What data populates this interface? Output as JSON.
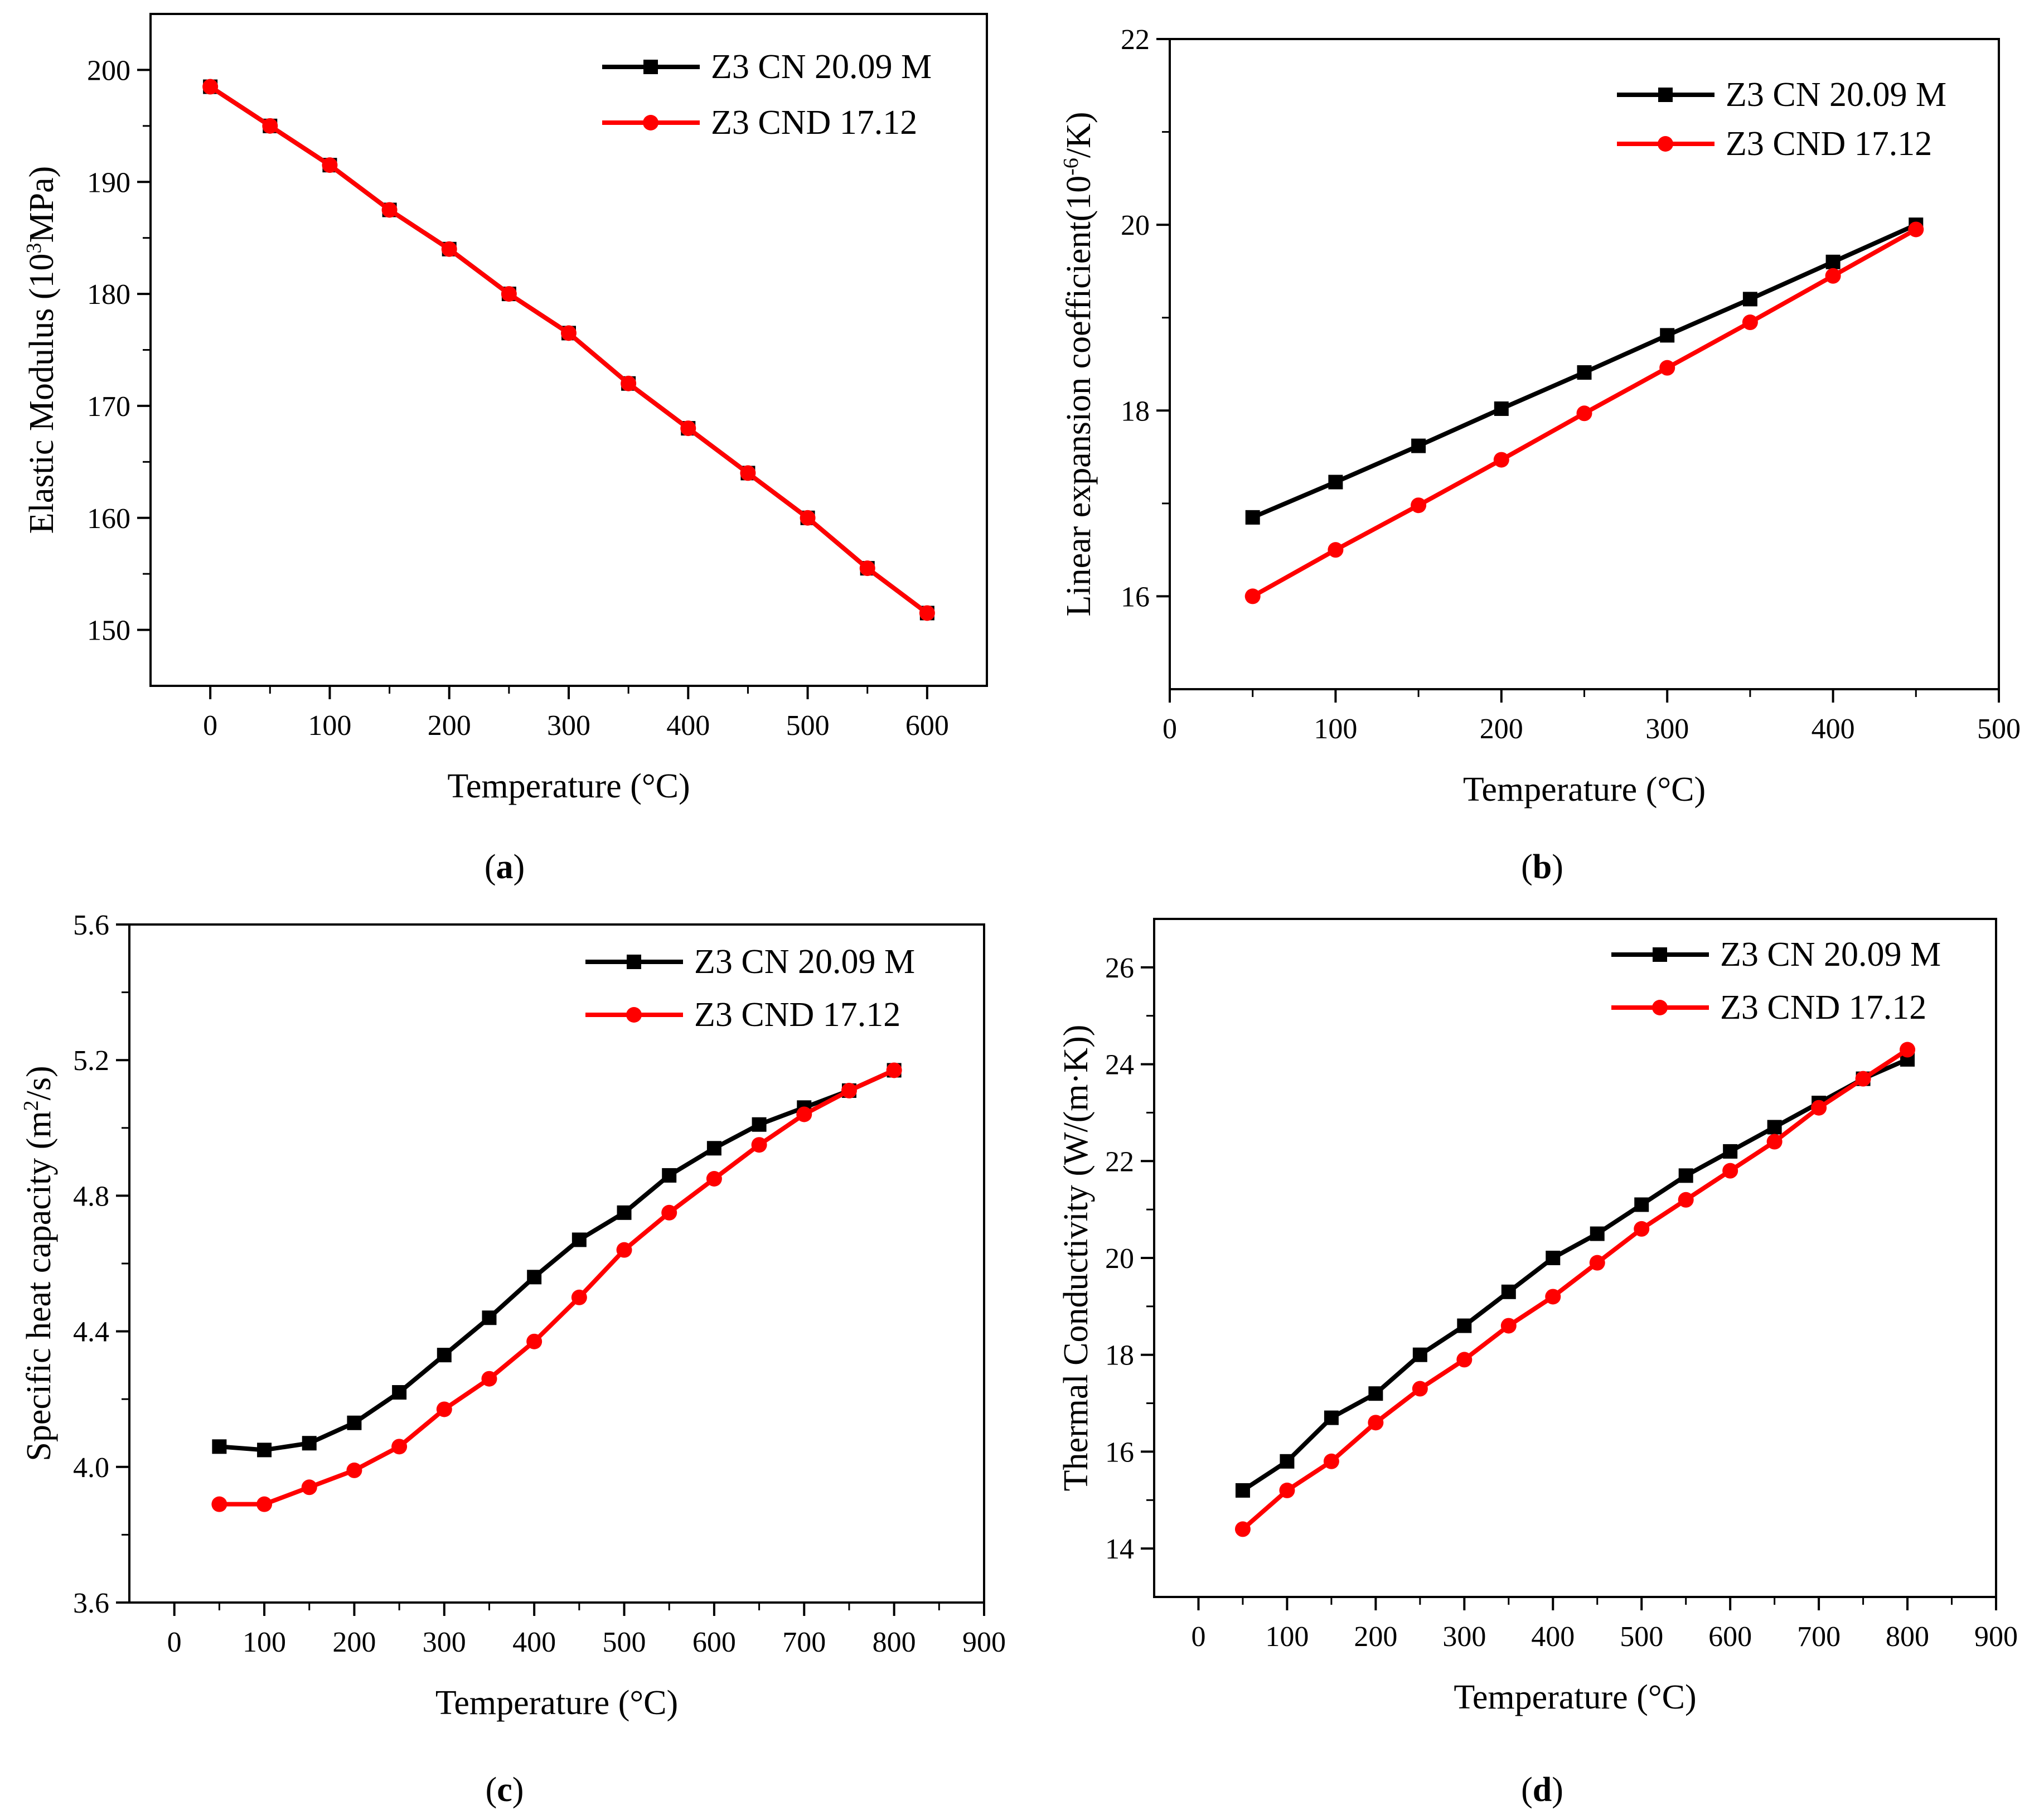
{
  "chart_data": [
    {
      "panel": "a",
      "type": "line",
      "caption_open": "(",
      "caption_letter": "a",
      "caption_close": ")",
      "xlabel": "Temperature (°C)",
      "ylabel_parts": [
        "Elastic Modulus (10",
        "3",
        "MPa)"
      ],
      "xlim": [
        -50,
        650
      ],
      "ylim": [
        145,
        205
      ],
      "xticks": [
        0,
        100,
        200,
        300,
        400,
        500,
        600
      ],
      "yticks": [
        150,
        160,
        170,
        180,
        190,
        200
      ],
      "tick_labels_x": [
        "0",
        "100",
        "200",
        "300",
        "400",
        "500",
        "600"
      ],
      "tick_labels_y": [
        "150",
        "160",
        "170",
        "180",
        "190",
        "200"
      ],
      "series": [
        {
          "name": "Z3 CN 20.09 M",
          "color": "#000000",
          "marker": "square",
          "x": [
            0,
            50,
            100,
            150,
            200,
            250,
            300,
            350,
            400,
            450,
            500,
            550,
            600
          ],
          "y": [
            198.5,
            195,
            191.5,
            187.5,
            184,
            180,
            176.5,
            172,
            168,
            164,
            160,
            155.5,
            151.5
          ]
        },
        {
          "name": "Z3 CND 17.12",
          "color": "#ff0000",
          "marker": "circle",
          "x": [
            0,
            50,
            100,
            150,
            200,
            250,
            300,
            350,
            400,
            450,
            500,
            550,
            600
          ],
          "y": [
            198.5,
            195,
            191.5,
            187.5,
            184,
            180,
            176.5,
            172,
            168,
            164,
            160,
            155.5,
            151.5
          ]
        }
      ]
    },
    {
      "panel": "b",
      "type": "line",
      "caption_open": "(",
      "caption_letter": "b",
      "caption_close": ")",
      "xlabel": "Temperature (°C)",
      "ylabel_parts": [
        "Linear expansion coefficient(10",
        "-6",
        "/K)"
      ],
      "xlim": [
        0,
        500
      ],
      "ylim": [
        15,
        22
      ],
      "xticks": [
        0,
        100,
        200,
        300,
        400,
        500
      ],
      "yticks": [
        16,
        18,
        20,
        22
      ],
      "tick_labels_x": [
        "0",
        "100",
        "200",
        "300",
        "400",
        "500"
      ],
      "tick_labels_y": [
        "16",
        "18",
        "20",
        "22"
      ],
      "series": [
        {
          "name": "Z3 CN 20.09 M",
          "color": "#000000",
          "marker": "square",
          "x": [
            50,
            100,
            150,
            200,
            250,
            300,
            350,
            400,
            450
          ],
          "y": [
            16.85,
            17.23,
            17.62,
            18.02,
            18.41,
            18.81,
            19.2,
            19.6,
            20.0
          ]
        },
        {
          "name": "Z3 CND 17.12",
          "color": "#ff0000",
          "marker": "circle",
          "x": [
            50,
            100,
            150,
            200,
            250,
            300,
            350,
            400,
            450
          ],
          "y": [
            16.0,
            16.5,
            16.98,
            17.47,
            17.97,
            18.46,
            18.95,
            19.45,
            19.95
          ]
        }
      ]
    },
    {
      "panel": "c",
      "type": "line",
      "caption_open": "(",
      "caption_letter": "c",
      "caption_close": ")",
      "xlabel": "Temperature (°C)",
      "ylabel_parts": [
        "Specific heat capacity (m",
        "2",
        "/s)"
      ],
      "xlim": [
        -50,
        900
      ],
      "ylim": [
        3.6,
        5.6
      ],
      "xticks": [
        0,
        100,
        200,
        300,
        400,
        500,
        600,
        700,
        800,
        900
      ],
      "yticks": [
        3.6,
        4.0,
        4.4,
        4.8,
        5.2,
        5.6
      ],
      "tick_labels_x": [
        "0",
        "100",
        "200",
        "300",
        "400",
        "500",
        "600",
        "700",
        "800",
        "900"
      ],
      "tick_labels_y": [
        "3.6",
        "4.0",
        "4.4",
        "4.8",
        "5.2",
        "5.6"
      ],
      "series": [
        {
          "name": "Z3 CN 20.09 M",
          "color": "#000000",
          "marker": "square",
          "x": [
            50,
            100,
            150,
            200,
            250,
            300,
            350,
            400,
            450,
            500,
            550,
            600,
            650,
            700,
            750,
            800
          ],
          "y": [
            4.06,
            4.05,
            4.07,
            4.13,
            4.22,
            4.33,
            4.44,
            4.56,
            4.67,
            4.75,
            4.86,
            4.94,
            5.01,
            5.06,
            5.11,
            5.17
          ]
        },
        {
          "name": "Z3 CND 17.12",
          "color": "#ff0000",
          "marker": "circle",
          "x": [
            50,
            100,
            150,
            200,
            250,
            300,
            350,
            400,
            450,
            500,
            550,
            600,
            650,
            700,
            750,
            800
          ],
          "y": [
            3.89,
            3.89,
            3.94,
            3.99,
            4.06,
            4.17,
            4.26,
            4.37,
            4.5,
            4.64,
            4.75,
            4.85,
            4.95,
            5.04,
            5.11,
            5.17
          ]
        }
      ]
    },
    {
      "panel": "d",
      "type": "line",
      "caption_open": "(",
      "caption_letter": "d",
      "caption_close": ")",
      "xlabel": "Temperature (°C)",
      "ylabel_parts": [
        "Thermal Conductivity (W/(m·K))"
      ],
      "xlim": [
        -50,
        900
      ],
      "ylim": [
        13,
        27
      ],
      "xticks": [
        0,
        100,
        200,
        300,
        400,
        500,
        600,
        700,
        800,
        900
      ],
      "yticks": [
        14,
        16,
        18,
        20,
        22,
        24,
        26
      ],
      "tick_labels_x": [
        "0",
        "100",
        "200",
        "300",
        "400",
        "500",
        "600",
        "700",
        "800",
        "900"
      ],
      "tick_labels_y": [
        "14",
        "16",
        "18",
        "20",
        "22",
        "24",
        "26"
      ],
      "series": [
        {
          "name": "Z3 CN 20.09 M",
          "color": "#000000",
          "marker": "square",
          "x": [
            50,
            100,
            150,
            200,
            250,
            300,
            350,
            400,
            450,
            500,
            550,
            600,
            650,
            700,
            750,
            800
          ],
          "y": [
            15.2,
            15.8,
            16.7,
            17.2,
            18.0,
            18.6,
            19.3,
            20.0,
            20.5,
            21.1,
            21.7,
            22.2,
            22.7,
            23.2,
            23.7,
            24.1
          ]
        },
        {
          "name": "Z3 CND 17.12",
          "color": "#ff0000",
          "marker": "circle",
          "x": [
            50,
            100,
            150,
            200,
            250,
            300,
            350,
            400,
            450,
            500,
            550,
            600,
            650,
            700,
            750,
            800
          ],
          "y": [
            14.4,
            15.2,
            15.8,
            16.6,
            17.3,
            17.9,
            18.6,
            19.2,
            19.9,
            20.6,
            21.2,
            21.8,
            22.4,
            23.1,
            23.7,
            24.3
          ]
        }
      ]
    }
  ]
}
